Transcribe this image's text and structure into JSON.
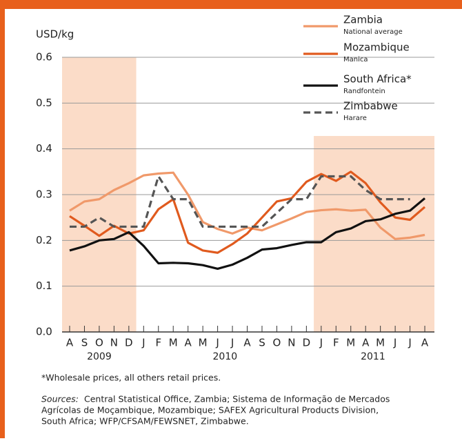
{
  "chart_data": {
    "type": "line",
    "y_label": "USD/kg",
    "categories": [
      "A",
      "S",
      "O",
      "N",
      "D",
      "J",
      "F",
      "M",
      "A",
      "M",
      "J",
      "J",
      "A",
      "S",
      "O",
      "N",
      "D",
      "J",
      "F",
      "M",
      "A",
      "M",
      "J",
      "J",
      "A"
    ],
    "years": [
      "2009",
      "2010",
      "2011"
    ],
    "ylim": [
      0,
      0.6
    ],
    "yticks": [
      {
        "value": 0,
        "label": "0.0"
      },
      0.1,
      0.2,
      0.3,
      0.4,
      0.5,
      0.6
    ],
    "grid": true,
    "legend": "top-right",
    "series": [
      {
        "name": "Zambia",
        "note": "National average",
        "color": "#f0996a",
        "dash": false,
        "values": [
          0.265,
          0.285,
          0.29,
          0.31,
          0.325,
          0.342,
          0.346,
          0.348,
          0.3,
          0.24,
          0.225,
          0.215,
          0.228,
          0.222,
          0.235,
          0.248,
          0.262,
          0.266,
          0.268,
          0.265,
          0.267,
          0.228,
          0.203,
          0.206,
          0.212
        ]
      },
      {
        "name": "Mozambique",
        "note": "Manica",
        "color": "#e05a1e",
        "dash": false,
        "values": [
          0.253,
          0.232,
          0.21,
          0.232,
          0.215,
          0.222,
          0.268,
          0.29,
          0.195,
          0.178,
          0.173,
          0.192,
          0.215,
          0.25,
          0.285,
          0.292,
          0.328,
          0.345,
          0.33,
          0.35,
          0.325,
          0.283,
          0.25,
          0.245,
          0.273
        ]
      },
      {
        "name": "South Africa*",
        "note": "Randfontein",
        "color": "#111111",
        "dash": false,
        "values": [
          0.178,
          0.187,
          0.2,
          0.203,
          0.218,
          0.188,
          0.15,
          0.151,
          0.15,
          0.146,
          0.138,
          0.147,
          0.162,
          0.18,
          0.183,
          0.19,
          0.196,
          0.196,
          0.218,
          0.226,
          0.242,
          0.246,
          0.258,
          0.265,
          0.292
        ]
      },
      {
        "name": "Zimbabwe",
        "note": "Harare",
        "color": "#555555",
        "dash": true,
        "values": [
          0.23,
          0.23,
          0.25,
          0.23,
          0.23,
          0.23,
          0.34,
          0.29,
          0.29,
          0.23,
          0.23,
          0.23,
          0.23,
          0.23,
          0.26,
          0.29,
          0.29,
          0.34,
          0.34,
          0.34,
          0.31,
          0.29,
          0.29,
          0.29,
          null
        ]
      }
    ],
    "footnote": "*Wholesale prices, all others retail prices.",
    "sources_label": "Sources:",
    "sources": [
      "Central Statistical Office, Zambia; Sistema de Informação de Mercados",
      "Agrícolas de Moçambique, Mozambique; SAFEX Agricultural Products Division,",
      "South Africa; WFP/CFSAM/FEWSNET, Zimbabwe."
    ]
  }
}
